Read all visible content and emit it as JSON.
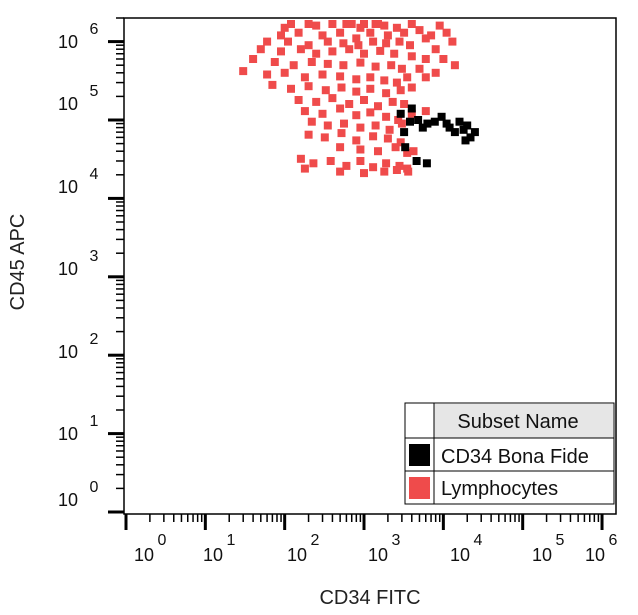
{
  "chart_data": {
    "type": "scatter",
    "xlabel": "CD34 FITC",
    "ylabel": "CD45 APC",
    "xscale": "log",
    "yscale": "log",
    "xlim": [
      1,
      1500000
    ],
    "ylim": [
      1,
      2000000
    ],
    "x_ticks": [
      {
        "base": "10",
        "exp": "0"
      },
      {
        "base": "10",
        "exp": "1"
      },
      {
        "base": "10",
        "exp": "2"
      },
      {
        "base": "10",
        "exp": "3"
      },
      {
        "base": "10",
        "exp": "4"
      },
      {
        "base": "10",
        "exp": "5"
      },
      {
        "base": "10",
        "exp": "6"
      }
    ],
    "y_ticks": [
      {
        "base": "10",
        "exp": "0"
      },
      {
        "base": "10",
        "exp": "1"
      },
      {
        "base": "10",
        "exp": "2"
      },
      {
        "base": "10",
        "exp": "3"
      },
      {
        "base": "10",
        "exp": "4"
      },
      {
        "base": "10",
        "exp": "5"
      },
      {
        "base": "10",
        "exp": "6"
      }
    ],
    "grid": false,
    "legend": {
      "title": "Subset Name",
      "placement": "bottom-right",
      "entries": [
        {
          "label": "CD34 Bona Fide",
          "color": "#000000"
        },
        {
          "label": "Lymphocytes",
          "color": "#ef4b4b"
        }
      ]
    },
    "series": [
      {
        "name": "Lymphocytes",
        "color": "#ef4b4b",
        "points": [
          [
            120,
            2000000
          ],
          [
            200,
            2000000
          ],
          [
            400,
            2000000
          ],
          [
            700,
            2000000
          ],
          [
            1000,
            2000000
          ],
          [
            1400,
            2000000
          ],
          [
            100,
            1500000
          ],
          [
            250,
            1600000
          ],
          [
            600,
            1700000
          ],
          [
            900,
            1500000
          ],
          [
            1500,
            1800000
          ],
          [
            1800,
            1600000
          ],
          [
            90,
            1200000
          ],
          [
            150,
            1300000
          ],
          [
            300,
            1200000
          ],
          [
            500,
            1300000
          ],
          [
            800,
            1100000
          ],
          [
            1200,
            1300000
          ],
          [
            2000,
            1200000
          ],
          [
            2600,
            1500000
          ],
          [
            3200,
            1300000
          ],
          [
            4000,
            1800000
          ],
          [
            5000,
            1400000
          ],
          [
            7000,
            1200000
          ],
          [
            9000,
            1600000
          ],
          [
            11000,
            1300000
          ],
          [
            60,
            1000000
          ],
          [
            110,
            1000000
          ],
          [
            200,
            900000
          ],
          [
            350,
            1000000
          ],
          [
            550,
            950000
          ],
          [
            850,
            900000
          ],
          [
            1300,
            1000000
          ],
          [
            1900,
            950000
          ],
          [
            2800,
            1000000
          ],
          [
            3800,
            900000
          ],
          [
            6000,
            1100000
          ],
          [
            8000,
            800000
          ],
          [
            13000,
            1000000
          ],
          [
            50,
            800000
          ],
          [
            90,
            750000
          ],
          [
            160,
            800000
          ],
          [
            250,
            700000
          ],
          [
            400,
            750000
          ],
          [
            650,
            800000
          ],
          [
            1000,
            700000
          ],
          [
            1600,
            760000
          ],
          [
            2400,
            700000
          ],
          [
            4000,
            650000
          ],
          [
            6000,
            600000
          ],
          [
            10000,
            600000
          ],
          [
            14000,
            500000
          ],
          [
            40,
            600000
          ],
          [
            75,
            550000
          ],
          [
            130,
            500000
          ],
          [
            220,
            550000
          ],
          [
            350,
            520000
          ],
          [
            550,
            500000
          ],
          [
            900,
            540000
          ],
          [
            1400,
            480000
          ],
          [
            2200,
            500000
          ],
          [
            3000,
            450000
          ],
          [
            5000,
            450000
          ],
          [
            8000,
            400000
          ],
          [
            30,
            420000
          ],
          [
            60,
            380000
          ],
          [
            100,
            400000
          ],
          [
            180,
            350000
          ],
          [
            300,
            380000
          ],
          [
            500,
            360000
          ],
          [
            800,
            330000
          ],
          [
            1200,
            350000
          ],
          [
            1800,
            320000
          ],
          [
            2600,
            300000
          ],
          [
            3500,
            350000
          ],
          [
            6000,
            350000
          ],
          [
            70,
            280000
          ],
          [
            120,
            250000
          ],
          [
            200,
            270000
          ],
          [
            330,
            240000
          ],
          [
            520,
            260000
          ],
          [
            800,
            230000
          ],
          [
            1200,
            250000
          ],
          [
            1900,
            220000
          ],
          [
            2900,
            240000
          ],
          [
            4000,
            260000
          ],
          [
            150,
            180000
          ],
          [
            250,
            170000
          ],
          [
            400,
            190000
          ],
          [
            650,
            160000
          ],
          [
            1000,
            180000
          ],
          [
            1500,
            150000
          ],
          [
            2300,
            170000
          ],
          [
            3200,
            160000
          ],
          [
            180,
            130000
          ],
          [
            300,
            120000
          ],
          [
            500,
            140000
          ],
          [
            800,
            115000
          ],
          [
            1200,
            125000
          ],
          [
            1900,
            110000
          ],
          [
            2700,
            100000
          ],
          [
            4000,
            120000
          ],
          [
            6000,
            130000
          ],
          [
            220,
            95000
          ],
          [
            350,
            85000
          ],
          [
            560,
            90000
          ],
          [
            900,
            80000
          ],
          [
            1400,
            85000
          ],
          [
            2100,
            75000
          ],
          [
            3000,
            90000
          ],
          [
            200,
            65000
          ],
          [
            320,
            60000
          ],
          [
            520,
            68000
          ],
          [
            800,
            55000
          ],
          [
            1300,
            62000
          ],
          [
            2000,
            58000
          ],
          [
            2900,
            52000
          ],
          [
            500,
            45000
          ],
          [
            900,
            42000
          ],
          [
            1500,
            40000
          ],
          [
            2500,
            45000
          ],
          [
            3500,
            38000
          ],
          [
            4200,
            40000
          ],
          [
            160,
            32000
          ],
          [
            230,
            28000
          ],
          [
            380,
            30000
          ],
          [
            600,
            26000
          ],
          [
            900,
            30000
          ],
          [
            1300,
            25000
          ],
          [
            1900,
            28000
          ],
          [
            2800,
            26000
          ],
          [
            3500,
            24000
          ],
          [
            180,
            24000
          ],
          [
            500,
            22000
          ],
          [
            1000,
            21000
          ],
          [
            1800,
            22000
          ],
          [
            2600,
            23000
          ],
          [
            3600,
            22000
          ]
        ]
      },
      {
        "name": "CD34 Bona Fide",
        "color": "#000000",
        "points": [
          [
            2900,
            120000
          ],
          [
            4000,
            140000
          ],
          [
            4800,
            100000
          ],
          [
            6300,
            90000
          ],
          [
            7800,
            95000
          ],
          [
            9500,
            110000
          ],
          [
            12000,
            80000
          ],
          [
            14000,
            70000
          ],
          [
            16000,
            95000
          ],
          [
            18000,
            75000
          ],
          [
            20000,
            85000
          ],
          [
            25000,
            70000
          ],
          [
            3800,
            95000
          ],
          [
            5500,
            80000
          ],
          [
            11000,
            90000
          ],
          [
            3200,
            70000
          ],
          [
            3300,
            45000
          ],
          [
            4600,
            30000
          ],
          [
            6200,
            28000
          ],
          [
            22000,
            60000
          ],
          [
            19000,
            55000
          ]
        ]
      }
    ]
  }
}
